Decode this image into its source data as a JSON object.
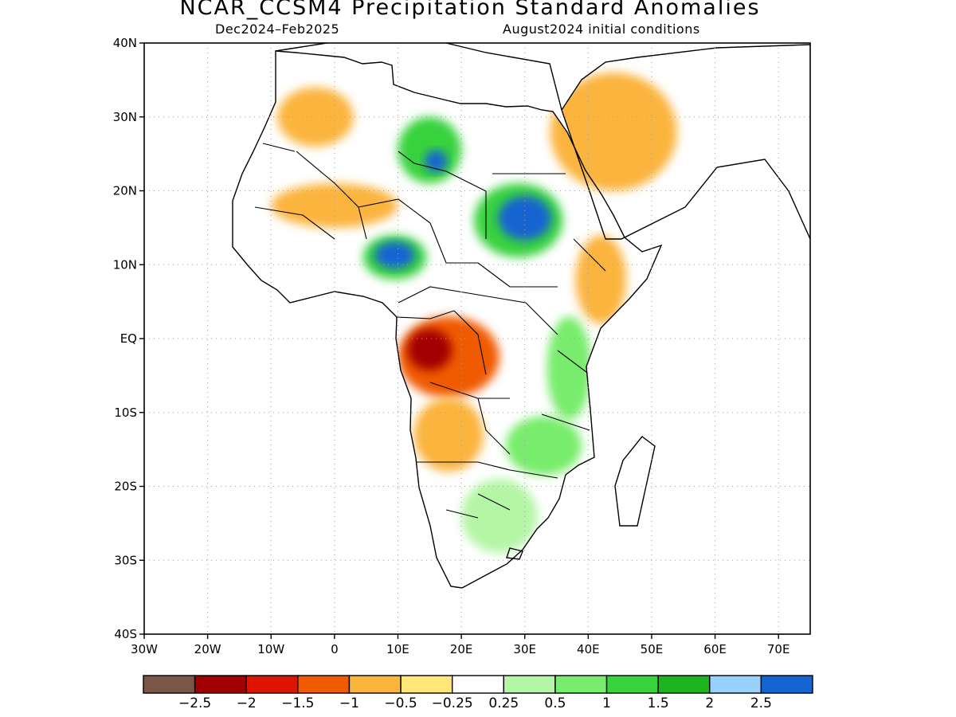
{
  "title": "NCAR_CCSM4 Precipitation Standard Anomalies",
  "period": "Dec2024–Feb2025",
  "init": "August2024 initial conditions",
  "map": {
    "lon_range": [
      -30,
      75
    ],
    "lat_range": [
      -40,
      40
    ],
    "lat_ticks": [
      {
        "value": 40,
        "label": "40N"
      },
      {
        "value": 30,
        "label": "30N"
      },
      {
        "value": 20,
        "label": "20N"
      },
      {
        "value": 10,
        "label": "10N"
      },
      {
        "value": 0,
        "label": "EQ"
      },
      {
        "value": -10,
        "label": "10S"
      },
      {
        "value": -20,
        "label": "20S"
      },
      {
        "value": -30,
        "label": "30S"
      },
      {
        "value": -40,
        "label": "40S"
      }
    ],
    "lon_ticks": [
      {
        "value": -30,
        "label": "30W"
      },
      {
        "value": -20,
        "label": "20W"
      },
      {
        "value": -10,
        "label": "10W"
      },
      {
        "value": 0,
        "label": "0"
      },
      {
        "value": 10,
        "label": "10E"
      },
      {
        "value": 20,
        "label": "20E"
      },
      {
        "value": 30,
        "label": "30E"
      },
      {
        "value": 40,
        "label": "40E"
      },
      {
        "value": 50,
        "label": "50E"
      },
      {
        "value": 60,
        "label": "60E"
      },
      {
        "value": 70,
        "label": "70E"
      }
    ],
    "grid": true
  },
  "colorbar": {
    "colors": [
      "#7a5548",
      "#a00000",
      "#dc1400",
      "#f05a00",
      "#fbb43c",
      "#ffe678",
      "#ffffff",
      "#b4f5a6",
      "#78ec6c",
      "#37d23c",
      "#1eb41e",
      "#96d2fa",
      "#1464d2"
    ],
    "labels": [
      "−2.5",
      "−2",
      "−1.5",
      "−1",
      "−0.5",
      "−0.25",
      "0.25",
      "0.5",
      "1",
      "1.5",
      "2",
      "2.5"
    ]
  },
  "anomaly_regions": [
    {
      "level": 1.5,
      "color": "#37d23c",
      "lon": 15.0,
      "lat": 25.5,
      "rlon": 5.0,
      "rlat": 4.5
    },
    {
      "level": 2.5,
      "color": "#1464d2",
      "lon": 16.0,
      "lat": 24.0,
      "rlon": 1.8,
      "rlat": 1.5
    },
    {
      "level": 1.5,
      "color": "#37d23c",
      "lon": 29.0,
      "lat": 16.0,
      "rlon": 7.0,
      "rlat": 5.0
    },
    {
      "level": 2.5,
      "color": "#1464d2",
      "lon": 30.0,
      "lat": 16.3,
      "rlon": 4.2,
      "rlat": 3.0
    },
    {
      "level": 1.5,
      "color": "#37d23c",
      "lon": 9.5,
      "lat": 11.0,
      "rlon": 5.0,
      "rlat": 3.0
    },
    {
      "level": 2.5,
      "color": "#1464d2",
      "lon": 9.5,
      "lat": 11.3,
      "rlon": 3.2,
      "rlat": 1.8
    },
    {
      "level": -1.5,
      "color": "#f05a00",
      "lon": 18.0,
      "lat": -2.5,
      "rlon": 8.0,
      "rlat": 5.5
    },
    {
      "level": -2.5,
      "color": "#a00000",
      "lon": 15.0,
      "lat": -1.5,
      "rlon": 3.5,
      "rlat": 2.8
    },
    {
      "level": 1.0,
      "color": "#78ec6c",
      "lon": 37.0,
      "lat": -4.0,
      "rlon": 3.5,
      "rlat": 7.0
    },
    {
      "level": 1.0,
      "color": "#78ec6c",
      "lon": 33.0,
      "lat": -14.5,
      "rlon": 6.0,
      "rlat": 4.0
    },
    {
      "level": -0.5,
      "color": "#fbb43c",
      "lon": 18.0,
      "lat": -13.0,
      "rlon": 5.5,
      "rlat": 5.0
    },
    {
      "level": -0.5,
      "color": "#fbb43c",
      "lon": 42.0,
      "lat": 8.0,
      "rlon": 4.0,
      "rlat": 6.0
    },
    {
      "level": -0.5,
      "color": "#fbb43c",
      "lon": 44.0,
      "lat": 28.0,
      "rlon": 10.0,
      "rlat": 8.0
    },
    {
      "level": -0.5,
      "color": "#fbb43c",
      "lon": -3.0,
      "lat": 30.0,
      "rlon": 6.0,
      "rlat": 4.0
    },
    {
      "level": -0.5,
      "color": "#fbb43c",
      "lon": 0.0,
      "lat": 18.0,
      "rlon": 10.0,
      "rlat": 3.0
    },
    {
      "level": 0.5,
      "color": "#b4f5a6",
      "lon": 26.0,
      "lat": -24.0,
      "rlon": 6.0,
      "rlat": 5.0
    }
  ]
}
